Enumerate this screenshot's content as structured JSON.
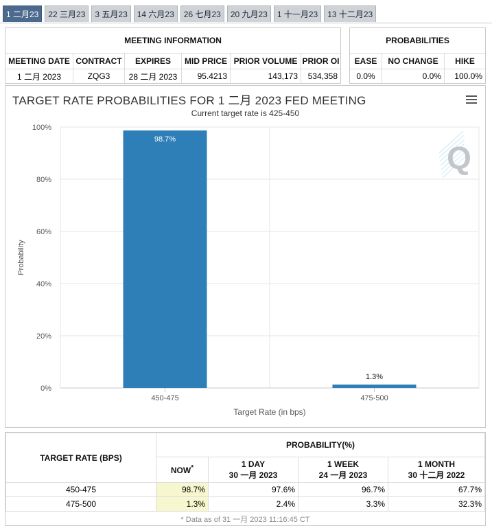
{
  "tabs": [
    "1 二月23",
    "22 三月23",
    "3 五月23",
    "14 六月23",
    "26 七月23",
    "20 九月23",
    "1 十一月23",
    "13 十二月23"
  ],
  "meeting_info": {
    "title": "MEETING INFORMATION",
    "headers": [
      "MEETING DATE",
      "CONTRACT",
      "EXPIRES",
      "MID PRICE",
      "PRIOR VOLUME",
      "PRIOR OI"
    ],
    "row": [
      "1 二月 2023",
      "ZQG3",
      "28 二月 2023",
      "95.4213",
      "143,173",
      "534,358"
    ]
  },
  "probabilities": {
    "title": "PROBABILITIES",
    "headers": [
      "EASE",
      "NO CHANGE",
      "HIKE"
    ],
    "row": [
      "0.0%",
      "0.0%",
      "100.0%"
    ]
  },
  "chart": {
    "title": "TARGET RATE PROBABILITIES FOR 1 二月 2023 FED MEETING",
    "subtitle": "Current target rate is 425-450",
    "logo_letter": "Q",
    "bar_color": "#2e7fb8"
  },
  "chart_data": {
    "type": "bar",
    "categories": [
      "450-475",
      "475-500"
    ],
    "values": [
      98.7,
      1.3
    ],
    "data_labels": [
      "98.7%",
      "1.3%"
    ],
    "xlabel": "Target Rate (in bps)",
    "ylabel": "Probability",
    "ylim": [
      0,
      100
    ],
    "yticks": [
      "0%",
      "20%",
      "40%",
      "60%",
      "80%",
      "100%"
    ],
    "grid": true
  },
  "prob_table": {
    "target_header": "TARGET RATE (BPS)",
    "group_header": "PROBABILITY(%)",
    "now_label": "NOW",
    "now_mark": "*",
    "cols": [
      {
        "label": "1 DAY",
        "date": "30 一月 2023"
      },
      {
        "label": "1 WEEK",
        "date": "24 一月 2023"
      },
      {
        "label": "1 MONTH",
        "date": "30 十二月 2022"
      }
    ],
    "rows": [
      {
        "rate": "450-475",
        "now": "98.7%",
        "day": "97.6%",
        "week": "96.7%",
        "month": "67.7%"
      },
      {
        "rate": "475-500",
        "now": "1.3%",
        "day": "2.4%",
        "week": "3.3%",
        "month": "32.3%"
      }
    ],
    "footnote": "* Data as of 31 一月 2023 11:16:45 CT"
  }
}
